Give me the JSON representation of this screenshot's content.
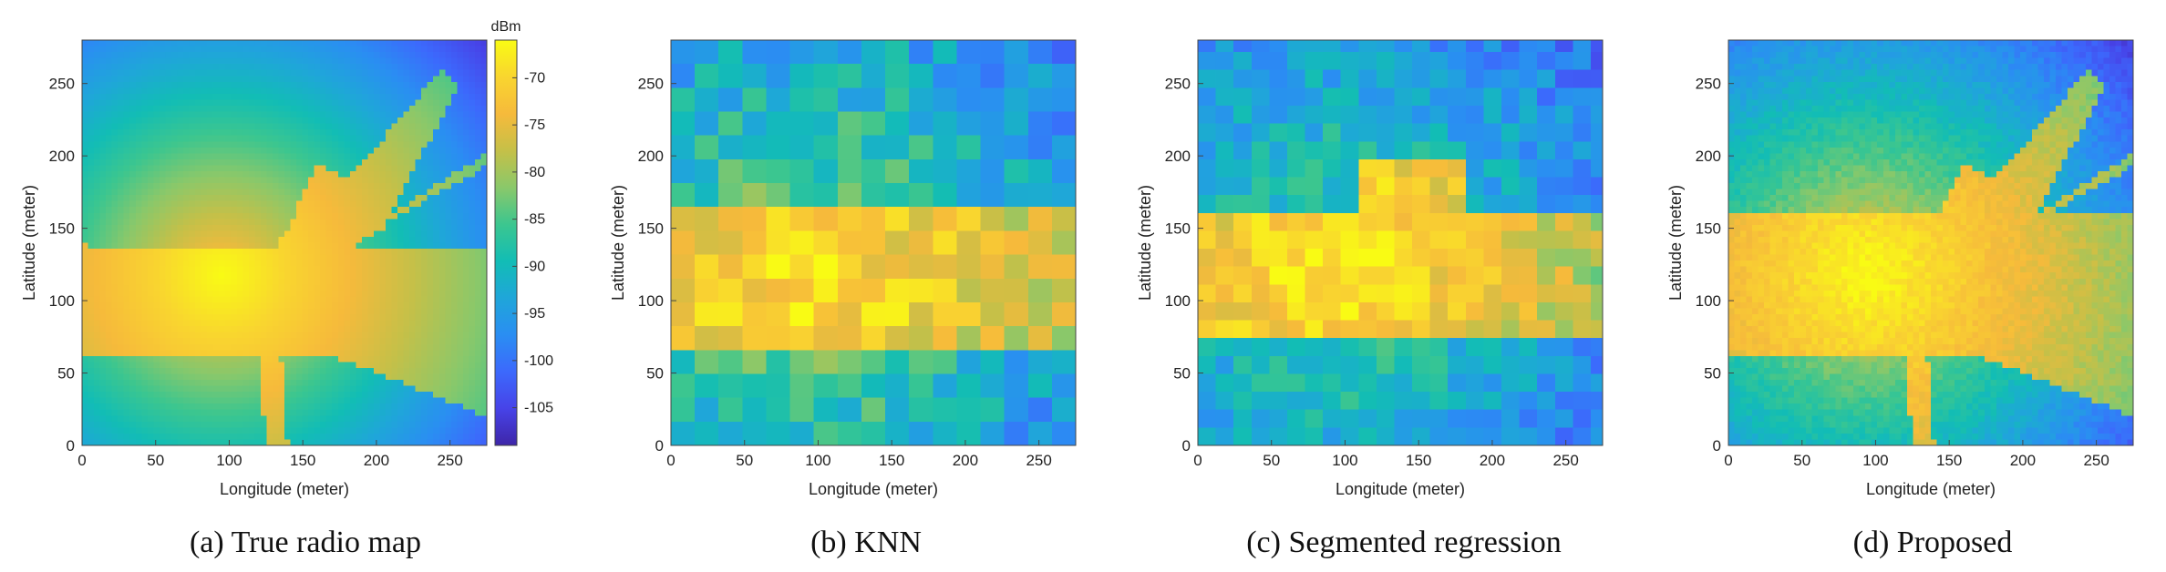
{
  "figure": {
    "colorbar": {
      "unit": "dBm",
      "min": -109,
      "max": -66,
      "ticks": [
        -70,
        -75,
        -80,
        -85,
        -90,
        -95,
        -100,
        -105
      ],
      "colormap": [
        "#3e26a8",
        "#4743e8",
        "#3c69fc",
        "#2a8ef2",
        "#1fa6d9",
        "#12bdb5",
        "#3cc68f",
        "#8ac86a",
        "#c5c048",
        "#f6ba3b",
        "#f9d52f",
        "#f9fb14"
      ]
    },
    "panels": [
      {
        "id": "a",
        "caption": "(a)  True radio map",
        "xlabel": "Longitude (meter)",
        "ylabel": "Latitude (meter)"
      },
      {
        "id": "b",
        "caption": "(b)  KNN",
        "xlabel": "Longitude (meter)",
        "ylabel": "Latitude (meter)"
      },
      {
        "id": "c",
        "caption": "(c)  Segmented regression",
        "xlabel": "Longitude (meter)",
        "ylabel": "Latitude (meter)"
      },
      {
        "id": "d",
        "caption": "(d)  Proposed",
        "xlabel": "Longitude (meter)",
        "ylabel": "Latitude (meter)"
      }
    ]
  },
  "chart_data": [
    {
      "type": "heatmap",
      "xlabel": "Longitude (meter)",
      "ylabel": "Latitude (meter)",
      "xlim": [
        0,
        275
      ],
      "ylim": [
        0,
        280
      ],
      "xticks": [
        0,
        50,
        100,
        150,
        200,
        250
      ],
      "yticks": [
        0,
        50,
        100,
        150,
        200,
        250
      ],
      "value_unit": "dBm",
      "source_location": [
        95,
        120
      ],
      "peak_value": -66,
      "min_value": -108,
      "description_values": {
        "corridor_y_range": [
          60,
          135
        ],
        "street_branches": "diagonal branches toward upper right, one downward branch near x=130"
      }
    },
    {
      "type": "heatmap",
      "xlabel": "Longitude (meter)",
      "ylabel": "Latitude (meter)",
      "xlim": [
        0,
        275
      ],
      "ylim": [
        0,
        280
      ],
      "xticks": [
        0,
        50,
        100,
        150,
        200,
        250
      ],
      "yticks": [
        0,
        50,
        100,
        150,
        200,
        250
      ],
      "value_unit": "dBm"
    },
    {
      "type": "heatmap",
      "xlabel": "Longitude (meter)",
      "ylabel": "Latitude (meter)",
      "xlim": [
        0,
        275
      ],
      "ylim": [
        0,
        280
      ],
      "xticks": [
        0,
        50,
        100,
        150,
        200,
        250
      ],
      "yticks": [
        0,
        50,
        100,
        150,
        200,
        250
      ],
      "value_unit": "dBm"
    },
    {
      "type": "heatmap",
      "xlabel": "Longitude (meter)",
      "ylabel": "Latitude (meter)",
      "xlim": [
        0,
        275
      ],
      "ylim": [
        0,
        280
      ],
      "xticks": [
        0,
        50,
        100,
        150,
        200,
        250
      ],
      "yticks": [
        0,
        50,
        100,
        150,
        200,
        250
      ],
      "value_unit": "dBm"
    }
  ]
}
